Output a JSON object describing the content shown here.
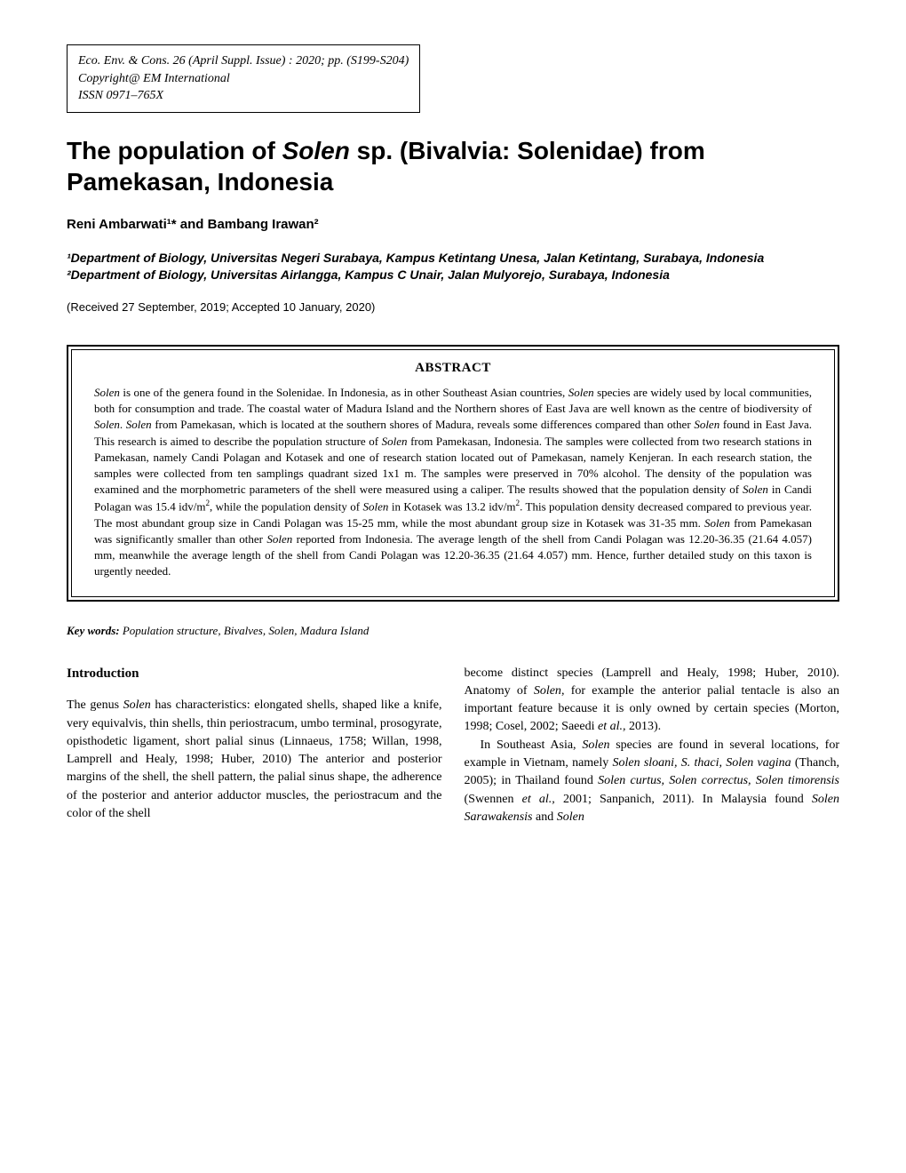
{
  "citation": {
    "line1": "Eco. Env. & Cons. 26 (April Suppl. Issue) : 2020; pp. (S199-S204)",
    "line2": "Copyright@ EM International",
    "line3": "ISSN 0971–765X"
  },
  "title": {
    "prefix": "The population of ",
    "italic": "Solen",
    "suffix": " sp. (Bivalvia: Solenidae) from Pamekasan, Indonesia"
  },
  "authors": "Reni Ambarwati¹* and Bambang Irawan²",
  "affiliations": {
    "aff1": "¹Department of Biology, Universitas Negeri Surabaya, Kampus Ketintang Unesa, Jalan Ketintang, Surabaya, Indonesia",
    "aff2": "²Department of Biology, Universitas Airlangga, Kampus C Unair, Jalan Mulyorejo, Surabaya, Indonesia"
  },
  "dates": "(Received 27 September, 2019; Accepted 10 January, 2020)",
  "abstract": {
    "heading": "ABSTRACT",
    "text": "Solen is one of the genera found in the Solenidae. In Indonesia, as in other Southeast Asian countries, Solen species are widely used by local communities, both for consumption and trade. The coastal water of Madura Island and the Northern shores of East Java are well known as the centre of biodiversity of Solen. Solen from Pamekasan, which is located at the southern shores of Madura, reveals some differences compared than other Solen found in East Java. This research is aimed to describe the population structure of Solen from Pamekasan, Indonesia. The samples were collected from two research stations in Pamekasan, namely Candi Polagan and Kotasek and one of research station located out of Pamekasan, namely Kenjeran. In each research station, the samples were collected from ten samplings quadrant sized 1x1 m. The samples were preserved in 70% alcohol. The density of the population was examined and the morphometric parameters of the shell were measured using a caliper. The results showed that the population density of Solen in Candi Polagan was 15.4 idv/m², while the population density of Solen in Kotasek was 13.2 idv/m². This population density decreased compared to previous year. The most abundant group size in Candi Polagan was 15-25 mm, while the most abundant group size in Kotasek was 31-35 mm. Solen from Pamekasan was significantly smaller than other Solen reported from Indonesia. The average length of the shell from Candi Polagan was 12.20-36.35 (21.64  4.057) mm, meanwhile the average length of the shell from Candi Polagan was 12.20-36.35 (21.64  4.057) mm. Hence, further detailed study on this taxon is urgently needed."
  },
  "keywords": {
    "label": "Key words:",
    "text": " Population structure, Bivalves, Solen, Madura Island"
  },
  "introduction": {
    "heading": "Introduction",
    "col1": "The genus Solen has characteristics: elongated shells, shaped like a knife, very equivalvis, thin shells, thin periostracum, umbo terminal, prosogyrate, opisthodetic ligament, short palial sinus  (Linnaeus, 1758; Willan, 1998, Lamprell and Healy, 1998; Huber, 2010) The anterior and posterior margins of the shell, the shell pattern, the palial sinus shape, the adherence of the posterior and anterior adductor muscles, the periostracum and the color of the shell",
    "col2_p1": "become distinct species (Lamprell and Healy, 1998; Huber, 2010). Anatomy of Solen, for example the anterior palial tentacle is also an important feature because it is only owned by certain species (Morton, 1998; Cosel, 2002; Saeedi et al., 2013).",
    "col2_p2": "In Southeast Asia, Solen species are found in several locations, for example in Vietnam, namely Solen sloani, S. thaci, Solen vagina (Thanch, 2005); in Thailand found Solen curtus, Solen correctus, Solen timorensis (Swennen et al., 2001; Sanpanich, 2011). In Malaysia found Solen Sarawakensis and Solen"
  }
}
